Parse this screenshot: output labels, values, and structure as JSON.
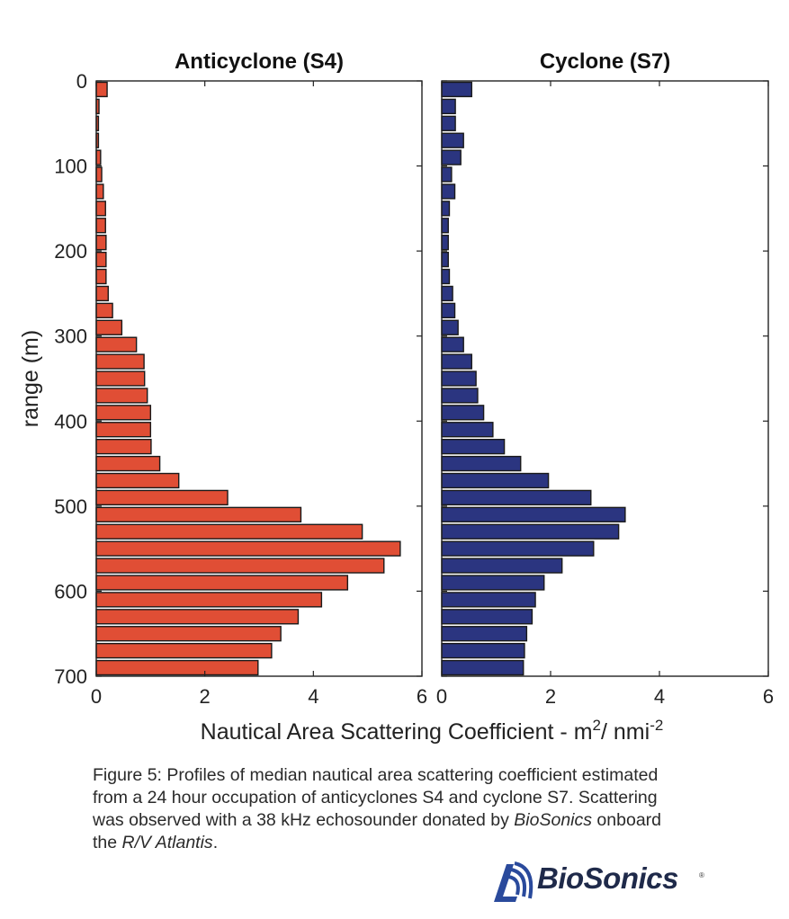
{
  "chart_data": [
    {
      "type": "bar",
      "orientation": "horizontal",
      "title": "Anticyclone (S4)",
      "ylabel": "range (m)",
      "xlabel": "Nautical Area Scattering Coefficient - m2/ nmi-2",
      "xlim": [
        0,
        6
      ],
      "ylim": [
        0,
        700
      ],
      "xticks": [
        "0",
        "2",
        "4",
        "6"
      ],
      "yticks": [
        "0",
        "100",
        "200",
        "300",
        "400",
        "500",
        "600",
        "700"
      ],
      "bin_width": 20,
      "color": "#e04e35",
      "ranges": [
        0,
        20,
        40,
        60,
        80,
        100,
        120,
        140,
        160,
        180,
        200,
        220,
        240,
        260,
        280,
        300,
        320,
        340,
        360,
        380,
        400,
        420,
        440,
        460,
        480,
        500,
        520,
        540,
        560,
        580,
        600,
        620,
        640,
        660,
        680
      ],
      "values": [
        0.2,
        0.05,
        0.04,
        0.04,
        0.08,
        0.1,
        0.13,
        0.17,
        0.17,
        0.18,
        0.18,
        0.18,
        0.22,
        0.3,
        0.47,
        0.74,
        0.88,
        0.89,
        0.94,
        1.0,
        1.0,
        1.01,
        1.17,
        1.52,
        2.42,
        3.77,
        4.9,
        5.6,
        5.3,
        4.63,
        4.15,
        3.72,
        3.4,
        3.23,
        2.98
      ]
    },
    {
      "type": "bar",
      "orientation": "horizontal",
      "title": "Cyclone (S7)",
      "xlim": [
        0,
        6
      ],
      "ylim": [
        0,
        700
      ],
      "xticks": [
        "0",
        "2",
        "4",
        "6"
      ],
      "bin_width": 20,
      "color": "#2b3580",
      "ranges": [
        0,
        20,
        40,
        60,
        80,
        100,
        120,
        140,
        160,
        180,
        200,
        220,
        240,
        260,
        280,
        300,
        320,
        340,
        360,
        380,
        400,
        420,
        440,
        460,
        480,
        500,
        520,
        540,
        560,
        580,
        600,
        620,
        640,
        660,
        680
      ],
      "values": [
        0.55,
        0.25,
        0.25,
        0.4,
        0.35,
        0.18,
        0.24,
        0.14,
        0.12,
        0.12,
        0.12,
        0.14,
        0.2,
        0.24,
        0.3,
        0.4,
        0.55,
        0.63,
        0.66,
        0.77,
        0.94,
        1.15,
        1.45,
        1.96,
        2.74,
        3.37,
        3.25,
        2.79,
        2.21,
        1.88,
        1.72,
        1.66,
        1.56,
        1.52,
        1.5
      ]
    }
  ],
  "xlabel_parts": {
    "main": "Nautical Area Scattering Coefficient - m",
    "sup1": "2",
    "mid": "/ nmi",
    "sup2": "-2"
  },
  "caption": {
    "line1": "Figure 5: Profiles of median nautical area scattering coefficient estimated",
    "line2": "from a 24 hour occupation of anticyclones S4 and cyclone S7.  Scattering",
    "line3_pre": "was observed with a 38 kHz echosounder donated by ",
    "line3_em": "BioSonics",
    "line3_post": " onboard",
    "line4_pre": "the ",
    "line4_em": "R/V Atlantis",
    "line4_post": "."
  },
  "logo": {
    "text": "BioSonics",
    "reg": "®",
    "color": "#2a4a9c"
  }
}
